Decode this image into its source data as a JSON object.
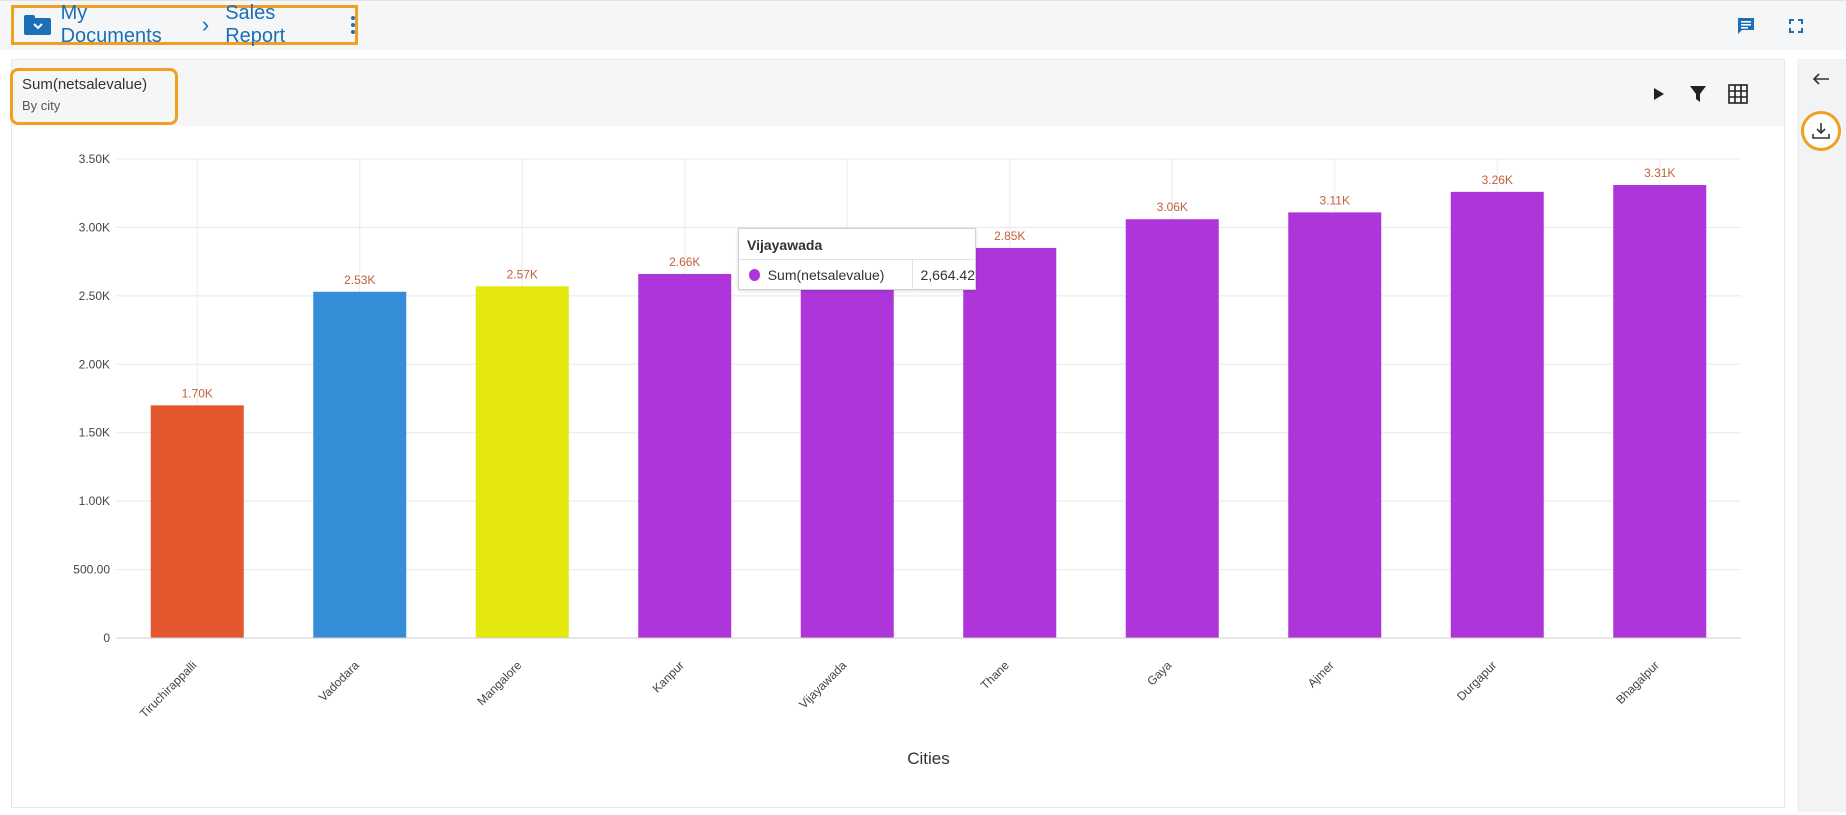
{
  "breadcrumb": {
    "root": "My Documents",
    "current": "Sales Report"
  },
  "card": {
    "title": "Sum(netsalevalue)",
    "subtitle": "By city"
  },
  "colors": {
    "accent": "#1b6fb5",
    "highlight": "#f0a020",
    "label": "#c0603a"
  },
  "chart_data": {
    "type": "bar",
    "xlabel": "Cities",
    "ylabel": "",
    "ylim": [
      0,
      3500
    ],
    "y_ticks": [
      0,
      500,
      1000,
      1500,
      2000,
      2500,
      3000,
      3500
    ],
    "y_tick_labels": [
      "0",
      "500.00",
      "1.00K",
      "1.50K",
      "2.00K",
      "2.50K",
      "3.00K",
      "3.50K"
    ],
    "categories": [
      "Tiruchirappalli",
      "Vadodara",
      "Mangalore",
      "Kanpur",
      "Vijayawada",
      "Thane",
      "Gaya",
      "Ajmer",
      "Durgapur",
      "Bhagalpur"
    ],
    "values": [
      1700,
      2530,
      2570,
      2660,
      2664.42,
      2850,
      3060,
      3110,
      3260,
      3310
    ],
    "data_labels": [
      "1.70K",
      "2.53K",
      "2.57K",
      "2.66K",
      "",
      "2.85K",
      "3.06K",
      "3.11K",
      "3.26K",
      "3.31K"
    ],
    "bar_colors": [
      "#e4572e",
      "#368dd8",
      "#e4e80c",
      "#ae35d9",
      "#ae35d9",
      "#ae35d9",
      "#ae35d9",
      "#ae35d9",
      "#ae35d9",
      "#ae35d9"
    ],
    "grid": true
  },
  "tooltip": {
    "title": "Vijayawada",
    "series_name": "Sum(netsalevalue)",
    "value": "2,664.42",
    "color": "#ae35d9"
  }
}
